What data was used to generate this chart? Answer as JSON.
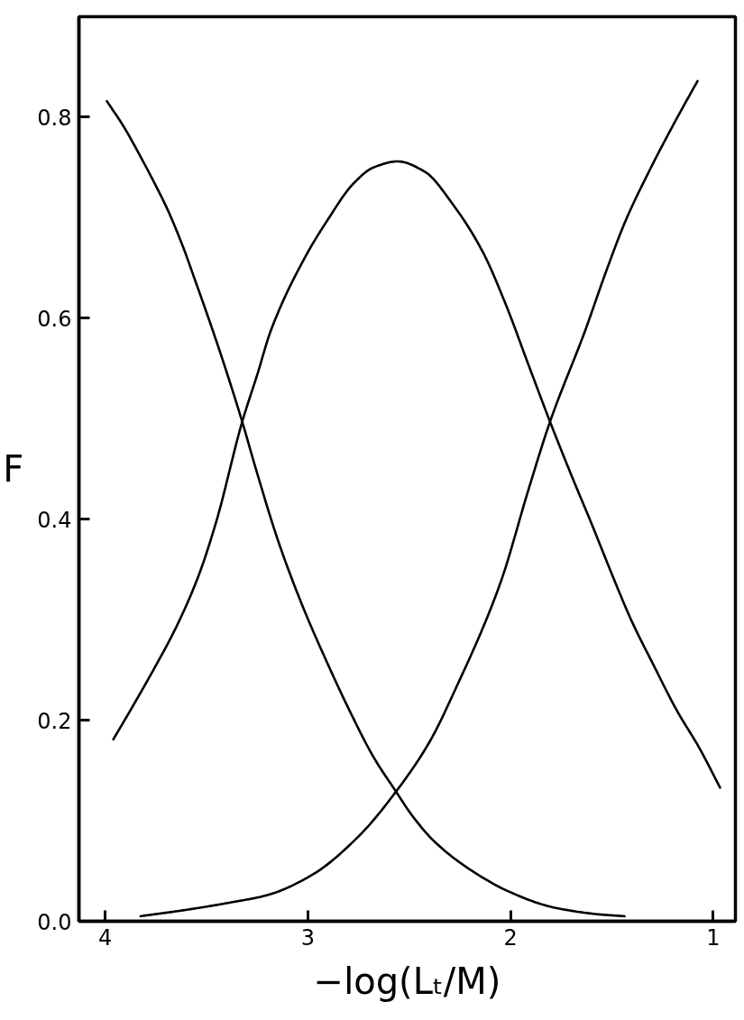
{
  "chart_data": {
    "type": "line",
    "xlabel": "−log(Lₜ/M)",
    "ylabel": "F",
    "xlim": [
      4.13,
      0.89
    ],
    "ylim": [
      0,
      0.9
    ],
    "xticks": [
      4,
      3,
      2,
      1
    ],
    "yticks": [
      {
        "value": 0,
        "label": "0.0"
      },
      0.2,
      0.4,
      0.6,
      0.8
    ],
    "grid": false,
    "series": [
      {
        "color": "#000000",
        "x": [
          3.992,
          3.904,
          3.832,
          3.761,
          3.69,
          3.62,
          3.55,
          3.48,
          3.41,
          3.324,
          3.258,
          3.146,
          3.029,
          2.911,
          2.793,
          2.675,
          2.565,
          2.485,
          2.379,
          2.204,
          2.013,
          1.793,
          1.571,
          1.437
        ],
        "values": [
          0.816,
          0.789,
          0.763,
          0.736,
          0.707,
          0.673,
          0.634,
          0.594,
          0.552,
          0.497,
          0.451,
          0.378,
          0.315,
          0.26,
          0.209,
          0.163,
          0.129,
          0.105,
          0.08,
          0.052,
          0.03,
          0.014,
          0.007,
          0.005
        ]
      },
      {
        "color": "#000000",
        "x": [
          3.96,
          3.864,
          3.757,
          3.649,
          3.541,
          3.453,
          3.324,
          3.248,
          3.184,
          3.013,
          2.905,
          2.775,
          2.676,
          2.557,
          2.425,
          2.28,
          2.137,
          2.024,
          1.912,
          1.805,
          1.694,
          1.605,
          1.505,
          1.405,
          1.292,
          1.18,
          1.067,
          0.966
        ],
        "values": [
          0.181,
          0.214,
          0.252,
          0.293,
          0.343,
          0.397,
          0.497,
          0.545,
          0.587,
          0.661,
          0.697,
          0.734,
          0.75,
          0.756,
          0.746,
          0.712,
          0.666,
          0.614,
          0.554,
          0.497,
          0.441,
          0.398,
          0.348,
          0.3,
          0.254,
          0.21,
          0.172,
          0.133
        ]
      },
      {
        "color": "#000000",
        "x": [
          3.826,
          3.579,
          3.373,
          3.2,
          2.98,
          2.752,
          2.565,
          2.398,
          2.274,
          2.051,
          1.906,
          1.805,
          1.631,
          1.531,
          1.432,
          1.309,
          1.187,
          1.077
        ],
        "values": [
          0.005,
          0.012,
          0.019,
          0.026,
          0.046,
          0.084,
          0.129,
          0.179,
          0.23,
          0.336,
          0.433,
          0.497,
          0.588,
          0.645,
          0.697,
          0.749,
          0.796,
          0.836
        ]
      }
    ]
  }
}
